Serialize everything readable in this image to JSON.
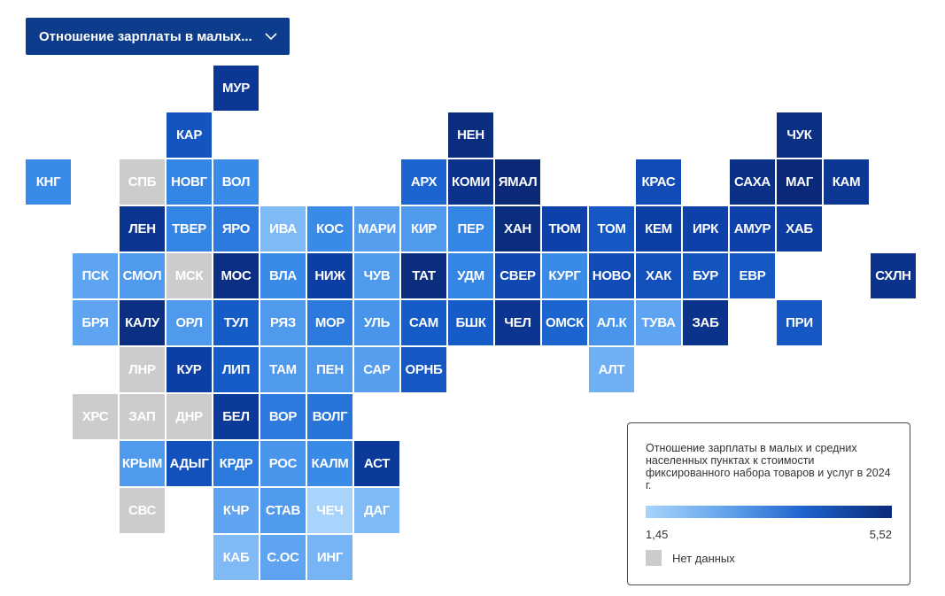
{
  "dropdown": {
    "label": "Отношение зарплаты в малых...",
    "icon": "chevron-down-icon"
  },
  "legend": {
    "title": "Отношение зарплаты в малых и средних населенных пунктах к стоимости фиксированного набора товаров и услуг в 2024 г.",
    "min_label": "1,45",
    "max_label": "5,52",
    "min_value": 1.45,
    "max_value": 5.52,
    "min_color": "#a8d3fb",
    "max_color": "#0a2a78",
    "no_data_label": "Нет данных",
    "no_data_color": "#cccccc"
  },
  "regions": [
    {
      "label": "МУР",
      "col": 4,
      "row": 0,
      "value": 4.9
    },
    {
      "label": "КАР",
      "col": 3,
      "row": 1,
      "value": 4.0
    },
    {
      "label": "НЕН",
      "col": 9,
      "row": 1,
      "value": 5.4
    },
    {
      "label": "ЧУК",
      "col": 16,
      "row": 1,
      "value": 5.3
    },
    {
      "label": "КНГ",
      "col": 0,
      "row": 2,
      "value": 2.9
    },
    {
      "label": "СПБ",
      "col": 2,
      "row": 2,
      "value": null
    },
    {
      "label": "НОВГ",
      "col": 3,
      "row": 2,
      "value": 3.0
    },
    {
      "label": "ВОЛ",
      "col": 4,
      "row": 2,
      "value": 2.9
    },
    {
      "label": "АРХ",
      "col": 8,
      "row": 2,
      "value": 3.6
    },
    {
      "label": "КОМИ",
      "col": 9,
      "row": 2,
      "value": 5.1
    },
    {
      "label": "ЯМАЛ",
      "col": 10,
      "row": 2,
      "value": 5.52
    },
    {
      "label": "КРАС",
      "col": 13,
      "row": 2,
      "value": 4.2
    },
    {
      "label": "САХА",
      "col": 15,
      "row": 2,
      "value": 5.2
    },
    {
      "label": "МАГ",
      "col": 16,
      "row": 2,
      "value": 5.5
    },
    {
      "label": "КАМ",
      "col": 17,
      "row": 2,
      "value": 4.9
    },
    {
      "label": "ЛЕН",
      "col": 2,
      "row": 3,
      "value": 5.0
    },
    {
      "label": "ТВЕР",
      "col": 3,
      "row": 3,
      "value": 3.0
    },
    {
      "label": "ЯРО",
      "col": 4,
      "row": 3,
      "value": 3.2
    },
    {
      "label": "ИВА",
      "col": 5,
      "row": 3,
      "value": 2.0
    },
    {
      "label": "КОС",
      "col": 6,
      "row": 3,
      "value": 2.9
    },
    {
      "label": "МАРИ",
      "col": 7,
      "row": 3,
      "value": 2.5
    },
    {
      "label": "КИР",
      "col": 8,
      "row": 3,
      "value": 2.6
    },
    {
      "label": "ПЕР",
      "col": 9,
      "row": 3,
      "value": 3.0
    },
    {
      "label": "ХАН",
      "col": 10,
      "row": 3,
      "value": 5.4
    },
    {
      "label": "ТЮМ",
      "col": 11,
      "row": 3,
      "value": 4.5
    },
    {
      "label": "ТОМ",
      "col": 12,
      "row": 3,
      "value": 3.9
    },
    {
      "label": "КЕМ",
      "col": 13,
      "row": 3,
      "value": 4.6
    },
    {
      "label": "ИРК",
      "col": 14,
      "row": 3,
      "value": 4.5
    },
    {
      "label": "АМУР",
      "col": 15,
      "row": 3,
      "value": 4.5
    },
    {
      "label": "ХАБ",
      "col": 16,
      "row": 3,
      "value": 4.7
    },
    {
      "label": "ПСК",
      "col": 1,
      "row": 4,
      "value": 2.4
    },
    {
      "label": "СМОЛ",
      "col": 2,
      "row": 4,
      "value": 2.6
    },
    {
      "label": "МСК",
      "col": 3,
      "row": 4,
      "value": null
    },
    {
      "label": "МОС",
      "col": 4,
      "row": 4,
      "value": 5.3
    },
    {
      "label": "ВЛА",
      "col": 5,
      "row": 4,
      "value": 2.9
    },
    {
      "label": "НИЖ",
      "col": 6,
      "row": 4,
      "value": 4.6
    },
    {
      "label": "ЧУВ",
      "col": 7,
      "row": 4,
      "value": 2.6
    },
    {
      "label": "ТАТ",
      "col": 8,
      "row": 4,
      "value": 5.4
    },
    {
      "label": "УДМ",
      "col": 9,
      "row": 4,
      "value": 3.0
    },
    {
      "label": "СВЕР",
      "col": 10,
      "row": 4,
      "value": 4.3
    },
    {
      "label": "КУРГ",
      "col": 11,
      "row": 4,
      "value": 2.9
    },
    {
      "label": "НОВО",
      "col": 12,
      "row": 4,
      "value": 4.2
    },
    {
      "label": "ХАК",
      "col": 13,
      "row": 4,
      "value": 4.1
    },
    {
      "label": "БУР",
      "col": 14,
      "row": 4,
      "value": 4.0
    },
    {
      "label": "ЕВР",
      "col": 15,
      "row": 4,
      "value": 3.9
    },
    {
      "label": "СХЛН",
      "col": 18,
      "row": 4,
      "value": 5.1
    },
    {
      "label": "БРЯ",
      "col": 1,
      "row": 5,
      "value": 2.4
    },
    {
      "label": "КАЛУ",
      "col": 2,
      "row": 5,
      "value": 5.3
    },
    {
      "label": "ОРЛ",
      "col": 3,
      "row": 5,
      "value": 2.6
    },
    {
      "label": "ТУЛ",
      "col": 4,
      "row": 5,
      "value": 3.8
    },
    {
      "label": "РЯЗ",
      "col": 5,
      "row": 5,
      "value": 2.6
    },
    {
      "label": "МОР",
      "col": 6,
      "row": 5,
      "value": 3.2
    },
    {
      "label": "УЛЬ",
      "col": 7,
      "row": 5,
      "value": 2.7
    },
    {
      "label": "САМ",
      "col": 8,
      "row": 5,
      "value": 3.8
    },
    {
      "label": "БШК",
      "col": 9,
      "row": 5,
      "value": 3.8
    },
    {
      "label": "ЧЕЛ",
      "col": 10,
      "row": 5,
      "value": 5.0
    },
    {
      "label": "ОМСК",
      "col": 11,
      "row": 5,
      "value": 3.6
    },
    {
      "label": "АЛ.К",
      "col": 12,
      "row": 5,
      "value": 2.7
    },
    {
      "label": "ТУВА",
      "col": 13,
      "row": 5,
      "value": 2.4
    },
    {
      "label": "ЗАБ",
      "col": 14,
      "row": 5,
      "value": 5.1
    },
    {
      "label": "ПРИ",
      "col": 16,
      "row": 5,
      "value": 3.9
    },
    {
      "label": "ЛНР",
      "col": 2,
      "row": 6,
      "value": null
    },
    {
      "label": "КУР",
      "col": 3,
      "row": 6,
      "value": 4.6
    },
    {
      "label": "ЛИП",
      "col": 4,
      "row": 6,
      "value": 3.8
    },
    {
      "label": "ТАМ",
      "col": 5,
      "row": 6,
      "value": 2.6
    },
    {
      "label": "ПЕН",
      "col": 6,
      "row": 6,
      "value": 2.6
    },
    {
      "label": "САР",
      "col": 7,
      "row": 6,
      "value": 2.5
    },
    {
      "label": "ОРНБ",
      "col": 8,
      "row": 6,
      "value": 3.9
    },
    {
      "label": "АЛТ",
      "col": 12,
      "row": 6,
      "value": 2.2
    },
    {
      "label": "ХРС",
      "col": 1,
      "row": 7,
      "value": null
    },
    {
      "label": "ЗАП",
      "col": 2,
      "row": 7,
      "value": null
    },
    {
      "label": "ДНР",
      "col": 3,
      "row": 7,
      "value": null
    },
    {
      "label": "БЕЛ",
      "col": 4,
      "row": 7,
      "value": 4.8
    },
    {
      "label": "ВОР",
      "col": 5,
      "row": 7,
      "value": 3.2
    },
    {
      "label": "ВОЛГ",
      "col": 6,
      "row": 7,
      "value": 3.3
    },
    {
      "label": "КРЫМ",
      "col": 2,
      "row": 8,
      "value": 2.6
    },
    {
      "label": "АДЫГ",
      "col": 3,
      "row": 8,
      "value": 4.1
    },
    {
      "label": "КРДР",
      "col": 4,
      "row": 8,
      "value": 3.2
    },
    {
      "label": "РОС",
      "col": 5,
      "row": 8,
      "value": 2.7
    },
    {
      "label": "КАЛМ",
      "col": 6,
      "row": 8,
      "value": 2.9
    },
    {
      "label": "АСТ",
      "col": 7,
      "row": 8,
      "value": 4.8
    },
    {
      "label": "СВС",
      "col": 2,
      "row": 9,
      "value": null
    },
    {
      "label": "КЧР",
      "col": 4,
      "row": 9,
      "value": 2.4
    },
    {
      "label": "СТАВ",
      "col": 5,
      "row": 9,
      "value": 2.6
    },
    {
      "label": "ЧЕЧ",
      "col": 6,
      "row": 9,
      "value": 1.45
    },
    {
      "label": "ДАГ",
      "col": 7,
      "row": 9,
      "value": 2.0
    },
    {
      "label": "КАБ",
      "col": 4,
      "row": 10,
      "value": 2.0
    },
    {
      "label": "С.ОС",
      "col": 5,
      "row": 10,
      "value": 2.4
    },
    {
      "label": "ИНГ",
      "col": 6,
      "row": 10,
      "value": 2.1
    }
  ]
}
